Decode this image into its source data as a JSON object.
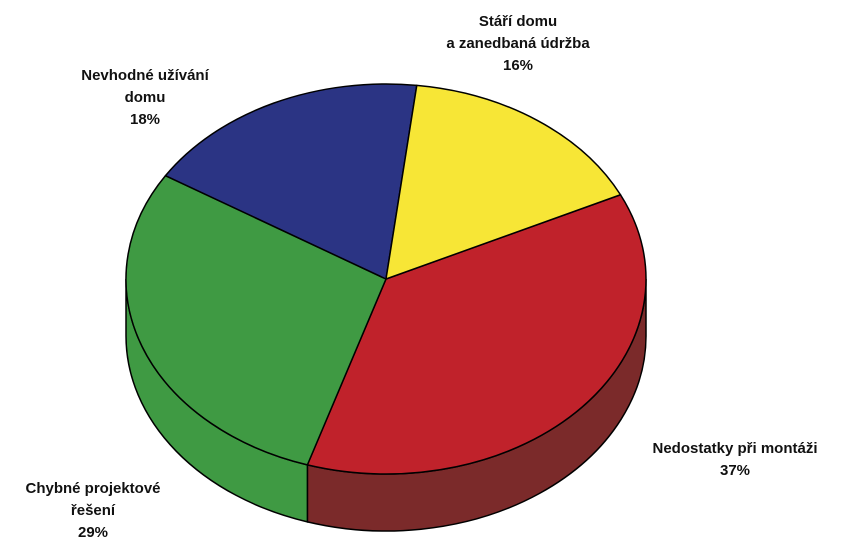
{
  "chart_data": {
    "type": "pie",
    "style": "3d",
    "title": "",
    "slices": [
      {
        "label_lines": [
          "Nedostatky při montáži"
        ],
        "value_text": "37%",
        "value": 37,
        "color": "#C0222B",
        "side_color": "#7B2A2A"
      },
      {
        "label_lines": [
          "Chybné projektové",
          "řešení"
        ],
        "value_text": "29%",
        "value": 29,
        "color": "#3F9A43",
        "side_color": "#3F9A43"
      },
      {
        "label_lines": [
          "Nevhodné užívání",
          "domu"
        ],
        "value_text": "18%",
        "value": 18,
        "color": "#2B3484",
        "side_color": "#2B3484"
      },
      {
        "label_lines": [
          "Stáří domu",
          "a zanedbaná údržba"
        ],
        "value_text": "16%",
        "value": 16,
        "color": "#F7E636",
        "side_color": "#F7E636"
      }
    ]
  }
}
